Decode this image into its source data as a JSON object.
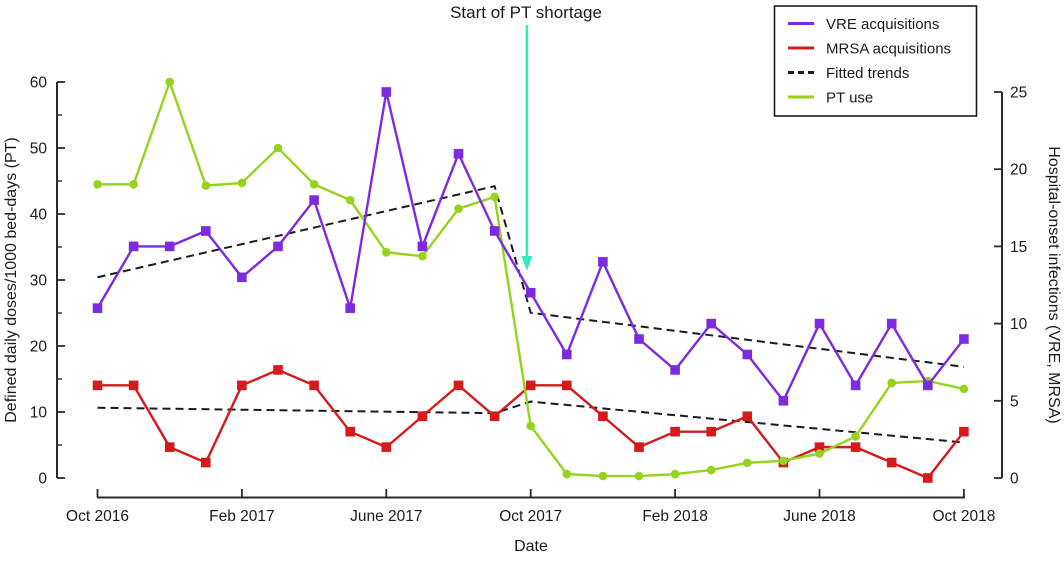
{
  "figure": {
    "annotation": "Start of PT shortage",
    "x_axis_title": "Date",
    "left_axis_title": "Defined daily doses/1000 bed-days (PT)",
    "right_axis_title": "Hospital-onset infections (VRE, MRSA)"
  },
  "legend": {
    "items": [
      {
        "label": "VRE acquisitions",
        "color": "#7D2AE0",
        "dashed": false
      },
      {
        "label": "MRSA acquisitions",
        "color": "#D31B1B",
        "dashed": false
      },
      {
        "label": "Fitted trends",
        "color": "#1b1b1b",
        "dashed": true
      },
      {
        "label": "PT use",
        "color": "#95D31F",
        "dashed": false
      }
    ]
  },
  "chart_data": {
    "type": "line",
    "x": [
      "Oct 2016",
      "Nov 2016",
      "Dec 2016",
      "Jan 2017",
      "Feb 2017",
      "Mar 2017",
      "Apr 2017",
      "May 2017",
      "June 2017",
      "July 2017",
      "Aug 2017",
      "Sep 2017",
      "Oct 2017",
      "Nov 2017",
      "Dec 2017",
      "Jan 2018",
      "Feb 2018",
      "Mar 2018",
      "Apr 2018",
      "May 2018",
      "June 2018",
      "July 2018",
      "Aug 2018",
      "Sep 2018",
      "Oct 2018"
    ],
    "x_tick_labels": [
      "Oct 2016",
      "Feb 2017",
      "June 2017",
      "Oct 2017",
      "Feb 2018",
      "June 2018",
      "Oct 2018"
    ],
    "x_tick_month_index": [
      0,
      4,
      8,
      12,
      16,
      20,
      24
    ],
    "left_axis": {
      "title": "Defined daily doses/1000 bed-days (PT)",
      "range": [
        0,
        60
      ],
      "major_ticks": [
        0,
        10,
        20,
        30,
        40,
        50,
        60
      ],
      "minor_tick_step": 5
    },
    "right_axis": {
      "title": "Hospital-onset infections (VRE, MRSA)",
      "range": [
        0,
        25
      ],
      "major_ticks": [
        0,
        5,
        10,
        15,
        20,
        25
      ]
    },
    "series": [
      {
        "name": "VRE acquisitions",
        "axis": "right",
        "color": "#7D2AE0",
        "marker": "square",
        "values": [
          11,
          15,
          15,
          16,
          13,
          15,
          18,
          11,
          25,
          15,
          21,
          16,
          12,
          8,
          14,
          9,
          7,
          10,
          8,
          5,
          10,
          6,
          10,
          6,
          9
        ]
      },
      {
        "name": "MRSA acquisitions",
        "axis": "right",
        "color": "#D31B1B",
        "marker": "square",
        "values": [
          6,
          6,
          2,
          1,
          6,
          7,
          6,
          3,
          2,
          4,
          6,
          4,
          6,
          6,
          4,
          2,
          3,
          3,
          4,
          1,
          2,
          2,
          1,
          0,
          3
        ]
      },
      {
        "name": "PT use",
        "axis": "left",
        "color": "#95D31F",
        "marker": "circle",
        "values": [
          44.5,
          44.5,
          60,
          44.3,
          44.7,
          50,
          44.5,
          42.1,
          34.2,
          33.6,
          40.8,
          42.6,
          7.9,
          0.6,
          0.3,
          0.3,
          0.6,
          1.2,
          2.3,
          2.6,
          3.7,
          6.3,
          14.4,
          14.7,
          13.5
        ]
      }
    ],
    "fitted_trends": [
      {
        "name": "VRE fitted trend",
        "axis": "right",
        "style": "dashed",
        "points_month_value": [
          [
            0,
            13.0
          ],
          [
            11,
            18.9
          ],
          [
            12,
            10.7
          ],
          [
            24,
            7.2
          ]
        ]
      },
      {
        "name": "MRSA fitted trend",
        "axis": "right",
        "style": "dashed",
        "points_month_value": [
          [
            0,
            4.55
          ],
          [
            11,
            4.2
          ],
          [
            12,
            4.95
          ],
          [
            24,
            2.3
          ]
        ]
      }
    ],
    "intervention": {
      "label": "Start of PT shortage",
      "month_index": 12,
      "arrow_color": "#3BE8C4"
    },
    "legend_position": "top-right",
    "grid": false
  },
  "colors": {
    "background": "#ffffff",
    "axis": "#2b2b2b",
    "text": "#1b1b1b",
    "trend": "#1b1b1b",
    "arrow": "#3BE8C4",
    "vre": "#7D2AE0",
    "mrsa": "#D31B1B",
    "pt": "#95D31F"
  }
}
